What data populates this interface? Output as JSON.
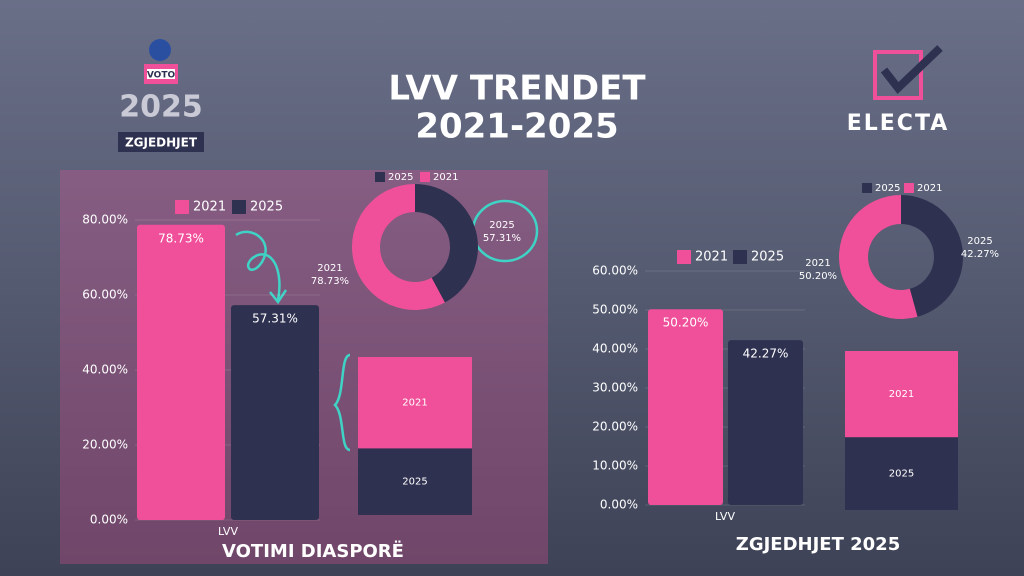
{
  "header": {
    "logo_box": "VOTO",
    "logo_year": "2025",
    "logo_label": "ZGJEDHJET",
    "title_line1": "LVV TRENDET",
    "title_line2": "2021-2025",
    "brand": "ELECTA"
  },
  "chart_data": [
    {
      "type": "bar",
      "title": "VOTIMI DIASPORË",
      "categories": [
        "LVV"
      ],
      "series": [
        {
          "name": "2021",
          "color": "#f0509a",
          "values": [
            78.73
          ],
          "value_labels": [
            "78.73%"
          ]
        },
        {
          "name": "2025",
          "color": "#2f3150",
          "values": [
            57.31
          ],
          "value_labels": [
            "57.31%"
          ]
        }
      ],
      "ylim": [
        0,
        80
      ],
      "yticks": [
        {
          "value": 0,
          "label": "0.00%"
        },
        {
          "value": 20,
          "label": "20.00%"
        },
        {
          "value": 40,
          "label": "40.00%"
        },
        {
          "value": 60,
          "label": "60.00%"
        },
        {
          "value": 80,
          "label": "80.00%"
        }
      ],
      "grid": true
    },
    {
      "type": "donut",
      "categories": [
        "2025",
        "2021"
      ],
      "values": [
        57.31,
        78.73
      ],
      "value_labels": [
        "57.31%",
        "78.73%"
      ],
      "colors": [
        "#2f3150",
        "#f0509a"
      ]
    },
    {
      "type": "stacked",
      "series": [
        {
          "name": "2021",
          "color": "#f0509a",
          "values": [
            78.73
          ]
        },
        {
          "name": "2025",
          "color": "#2f3150",
          "values": [
            57.31
          ]
        }
      ]
    },
    {
      "type": "bar",
      "title": "ZGJEDHJET 2025",
      "categories": [
        "LVV"
      ],
      "series": [
        {
          "name": "2021",
          "color": "#f0509a",
          "values": [
            50.2
          ],
          "value_labels": [
            "50.20%"
          ]
        },
        {
          "name": "2025",
          "color": "#2f3150",
          "values": [
            42.27
          ],
          "value_labels": [
            "42.27%"
          ]
        }
      ],
      "ylim": [
        0,
        60
      ],
      "yticks": [
        {
          "value": 0,
          "label": "0.00%"
        },
        {
          "value": 10,
          "label": "10.00%"
        },
        {
          "value": 20,
          "label": "20.00%"
        },
        {
          "value": 30,
          "label": "30.00%"
        },
        {
          "value": 40,
          "label": "40.00%"
        },
        {
          "value": 50,
          "label": "50.00%"
        },
        {
          "value": 60,
          "label": "60.00%"
        }
      ],
      "grid": true
    },
    {
      "type": "donut",
      "categories": [
        "2025",
        "2021"
      ],
      "values": [
        42.27,
        50.2
      ],
      "value_labels": [
        "42.27%",
        "50.20%"
      ],
      "colors": [
        "#2f3150",
        "#f0509a"
      ]
    },
    {
      "type": "stacked",
      "series": [
        {
          "name": "2021",
          "color": "#f0509a",
          "values": [
            50.2
          ]
        },
        {
          "name": "2025",
          "color": "#2f3150",
          "values": [
            42.27
          ]
        }
      ]
    }
  ]
}
